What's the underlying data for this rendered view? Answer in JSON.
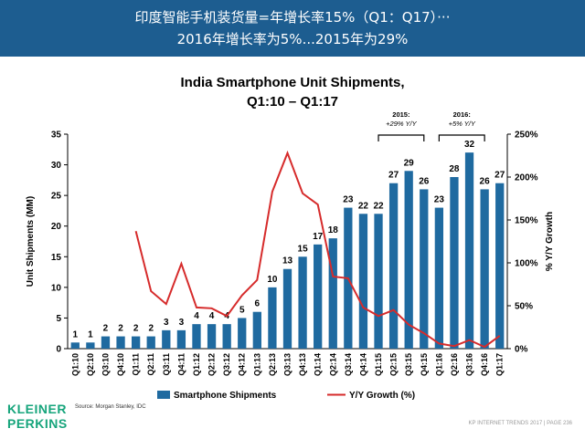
{
  "header": {
    "line1": "印度智能手机装货量=年增长率15%（Q1：Q17）···",
    "line2": "2016年增长率为5%...2015年为29%"
  },
  "colors": {
    "header_bg": "#1d5d90",
    "bar": "#1f6aa0",
    "line": "#d62b2b",
    "logo": "#17a57c"
  },
  "chart_data": {
    "type": "bar",
    "title": "India Smartphone Unit Shipments, Q1:10 – Q1:17",
    "categories": [
      "Q1:10",
      "Q2:10",
      "Q3:10",
      "Q4:10",
      "Q1:11",
      "Q2:11",
      "Q3:11",
      "Q4:11",
      "Q1:12",
      "Q2:12",
      "Q3:12",
      "Q4:12",
      "Q1:13",
      "Q2:13",
      "Q3:13",
      "Q4:13",
      "Q1:14",
      "Q2:14",
      "Q3:14",
      "Q4:14",
      "Q1:15",
      "Q2:15",
      "Q3:15",
      "Q4:15",
      "Q1:16",
      "Q2:16",
      "Q3:16",
      "Q4:16",
      "Q1:17"
    ],
    "series": [
      {
        "name": "Smartphone Shipments",
        "type": "bar",
        "values": [
          1,
          1,
          2,
          2,
          2,
          2,
          3,
          3,
          4,
          4,
          4,
          5,
          6,
          10,
          13,
          15,
          17,
          18,
          23,
          22,
          22,
          27,
          29,
          26,
          23,
          28,
          32,
          26,
          27
        ],
        "labels": [
          "1",
          "1",
          "2",
          "2",
          "2",
          "2",
          "3",
          "3",
          "4",
          "4",
          "4",
          "5",
          "6",
          "10",
          "13",
          "15",
          "17",
          "18",
          "23",
          "22",
          "22",
          "27",
          "29",
          "26",
          "23",
          "28",
          "32",
          "26",
          "27"
        ]
      },
      {
        "name": "Y/Y Growth (%)",
        "type": "line",
        "axis": "right",
        "values": [
          null,
          null,
          null,
          null,
          137,
          67,
          52,
          99,
          48,
          47,
          38,
          62,
          80,
          183,
          228,
          181,
          168,
          84,
          82,
          48,
          38,
          45,
          28,
          18,
          6,
          3,
          10,
          2,
          15
        ]
      }
    ],
    "ylabel": "Unit Shipments (MM)",
    "y2label": "% Y/Y Growth",
    "ylim": [
      0,
      35
    ],
    "yticks": [
      "0",
      "5",
      "10",
      "15",
      "20",
      "25",
      "30",
      "35"
    ],
    "y2lim": [
      0,
      250
    ],
    "y2ticks": [
      "0%",
      "50%",
      "100%",
      "150%",
      "200%",
      "250%"
    ],
    "annotations": [
      {
        "title": "2015:",
        "subtitle": "+29% Y/Y"
      },
      {
        "title": "2016:",
        "subtitle": "+5% Y/Y"
      }
    ],
    "source": "Source: Morgan Stanley, IDC",
    "legend_position": "bottom",
    "grid": false
  },
  "footer": {
    "logo_line1": "KLEINER",
    "logo_line2": "PERKINS",
    "credit": "KP INTERNET TRENDS 2017  |  PAGE 236"
  }
}
